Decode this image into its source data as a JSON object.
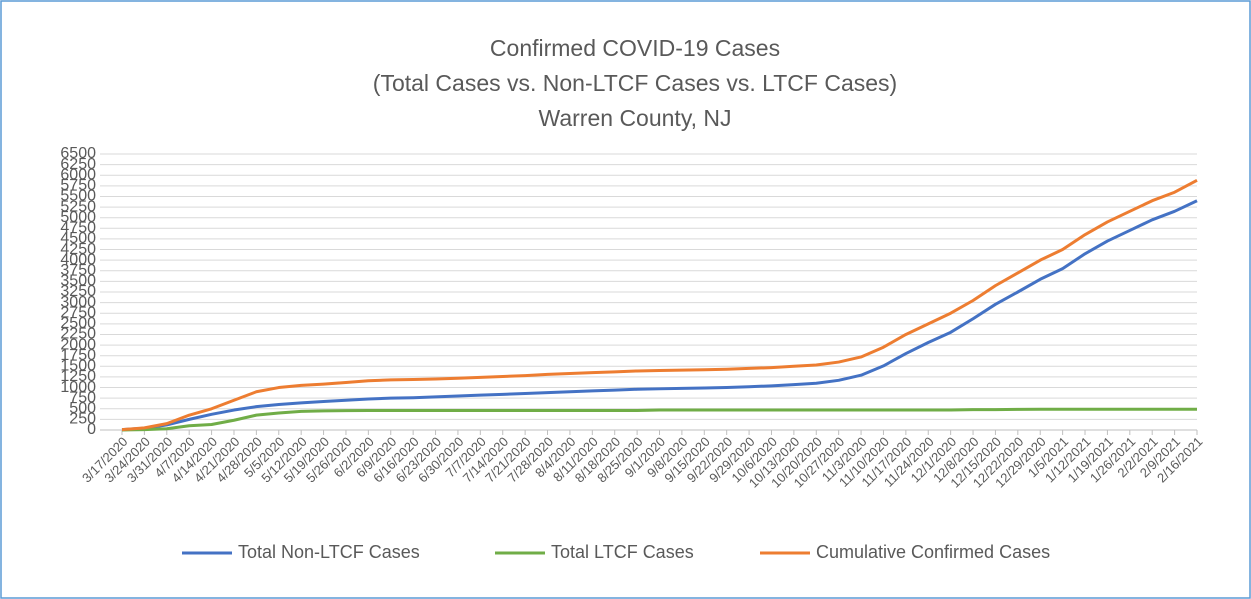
{
  "chart_data": {
    "type": "line",
    "title": [
      "Confirmed COVID-19 Cases",
      "(Total Cases vs. Non-LTCF Cases vs. LTCF Cases)",
      "Warren County, NJ"
    ],
    "categories": [
      "3/17/2020",
      "3/24/2020",
      "3/31/2020",
      "4/7/2020",
      "4/14/2020",
      "4/21/2020",
      "4/28/2020",
      "5/5/2020",
      "5/12/2020",
      "5/19/2020",
      "5/26/2020",
      "6/2/2020",
      "6/9/2020",
      "6/16/2020",
      "6/23/2020",
      "6/30/2020",
      "7/7/2020",
      "7/14/2020",
      "7/21/2020",
      "7/28/2020",
      "8/4/2020",
      "8/11/2020",
      "8/18/2020",
      "8/25/2020",
      "9/1/2020",
      "9/8/2020",
      "9/15/2020",
      "9/22/2020",
      "9/29/2020",
      "10/6/2020",
      "10/13/2020",
      "10/20/2020",
      "10/27/2020",
      "11/3/2020",
      "11/10/2020",
      "11/17/2020",
      "11/24/2020",
      "12/1/2020",
      "12/8/2020",
      "12/15/2020",
      "12/22/2020",
      "12/29/2020",
      "1/5/2021",
      "1/12/2021",
      "1/19/2021",
      "1/26/2021",
      "2/2/2021",
      "2/9/2021",
      "2/16/2021"
    ],
    "series": [
      {
        "name": "Total Non-LTCF Cases",
        "color": "#4472c4",
        "values": [
          10,
          40,
          120,
          250,
          370,
          470,
          550,
          600,
          640,
          670,
          700,
          730,
          750,
          760,
          780,
          800,
          820,
          840,
          860,
          880,
          900,
          920,
          940,
          960,
          970,
          980,
          990,
          1000,
          1020,
          1040,
          1070,
          1100,
          1170,
          1290,
          1510,
          1800,
          2060,
          2300,
          2620,
          2960,
          3250,
          3550,
          3800,
          4150,
          4450,
          4700,
          4950,
          5150,
          5400
        ]
      },
      {
        "name": "Total LTCF Cases",
        "color": "#70ad47",
        "values": [
          0,
          10,
          30,
          100,
          130,
          230,
          350,
          400,
          440,
          450,
          455,
          460,
          460,
          460,
          460,
          460,
          460,
          460,
          460,
          460,
          460,
          460,
          460,
          460,
          470,
          470,
          470,
          470,
          470,
          470,
          470,
          470,
          470,
          470,
          470,
          470,
          470,
          470,
          480,
          480,
          485,
          490,
          490,
          490,
          490,
          490,
          490,
          490,
          490
        ]
      },
      {
        "name": "Cumulative Confirmed Cases",
        "color": "#ed7d31",
        "values": [
          10,
          50,
          150,
          350,
          500,
          700,
          900,
          1000,
          1050,
          1080,
          1120,
          1160,
          1180,
          1190,
          1200,
          1220,
          1240,
          1260,
          1280,
          1310,
          1330,
          1350,
          1370,
          1390,
          1400,
          1410,
          1420,
          1430,
          1450,
          1470,
          1500,
          1530,
          1600,
          1720,
          1950,
          2250,
          2500,
          2750,
          3050,
          3400,
          3700,
          4000,
          4250,
          4600,
          4900,
          5150,
          5400,
          5600,
          5880
        ]
      }
    ],
    "ylim": [
      0,
      6500
    ],
    "yticks": [
      0,
      250,
      500,
      750,
      1000,
      1250,
      1500,
      1750,
      2000,
      2250,
      2500,
      2750,
      3000,
      3250,
      3500,
      3750,
      4000,
      4250,
      4500,
      4750,
      5000,
      5250,
      5500,
      5750,
      6000,
      6250,
      6500
    ],
    "grid": true
  }
}
